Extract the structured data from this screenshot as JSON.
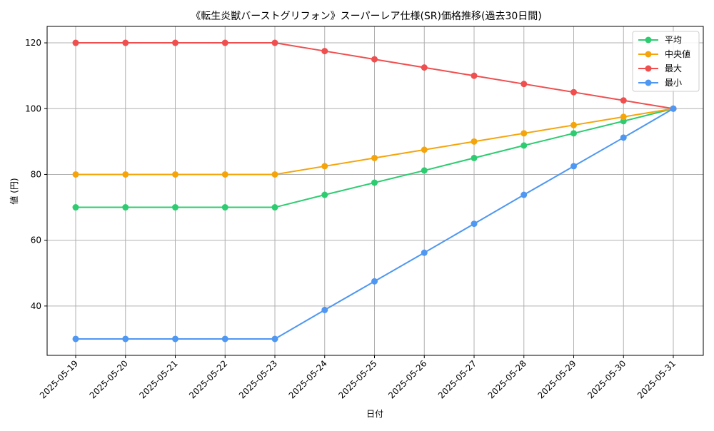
{
  "chart_data": {
    "type": "line",
    "title": "《転生炎獣バーストグリフォン》スーパーレア仕様(SR)価格推移(過去30日間)",
    "xlabel": "日付",
    "ylabel": "値 (円)",
    "x": [
      "2025-05-19",
      "2025-05-20",
      "2025-05-21",
      "2025-05-22",
      "2025-05-23",
      "2025-05-24",
      "2025-05-25",
      "2025-05-26",
      "2025-05-27",
      "2025-05-28",
      "2025-05-29",
      "2025-05-30",
      "2025-05-31"
    ],
    "ylim": [
      25,
      125
    ],
    "yticks": [
      40,
      60,
      80,
      100,
      120
    ],
    "grid": true,
    "legend_position": "top-right",
    "series": [
      {
        "name": "平均",
        "color": "#2ecc71",
        "values": [
          70,
          70,
          70,
          70,
          70,
          73.8,
          77.5,
          81.2,
          85.0,
          88.8,
          92.5,
          96.2,
          100
        ]
      },
      {
        "name": "中央値",
        "color": "#f5a50b",
        "values": [
          80,
          80,
          80,
          80,
          80,
          82.5,
          85.0,
          87.5,
          90.0,
          92.5,
          95.0,
          97.5,
          100
        ]
      },
      {
        "name": "最大",
        "color": "#ef4f4f",
        "values": [
          120,
          120,
          120,
          120,
          120,
          117.5,
          115.0,
          112.5,
          110.0,
          107.5,
          105.0,
          102.5,
          100
        ]
      },
      {
        "name": "最小",
        "color": "#4e97f2",
        "values": [
          30,
          30,
          30,
          30,
          30,
          38.8,
          47.5,
          56.2,
          65.0,
          73.8,
          82.5,
          91.2,
          100
        ]
      }
    ]
  }
}
